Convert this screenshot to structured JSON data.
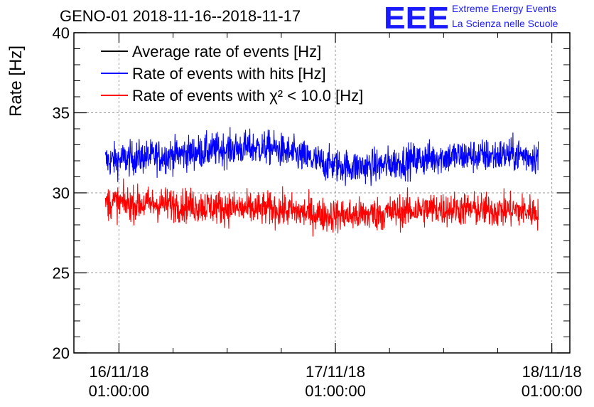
{
  "title": "GENO-01 2018-11-16--2018-11-17",
  "logo": {
    "mark": "EEE",
    "line1": "Extreme Energy Events",
    "line2": "La Scienza nelle Scuole",
    "color": "#1a1aff"
  },
  "chart_data": {
    "type": "line",
    "title": "GENO-01 2018-11-16--2018-11-17",
    "xlabel": "",
    "ylabel": "Rate [Hz]",
    "ylim": [
      20,
      40
    ],
    "xlim": [
      "2018-11-15 20:00",
      "2018-11-18 03:00"
    ],
    "yticks": [
      20,
      25,
      30,
      35,
      40
    ],
    "xticks": [
      {
        "line1": "16/11/18",
        "line2": "01:00:00"
      },
      {
        "line1": "17/11/18",
        "line2": "01:00:00"
      },
      {
        "line1": "18/11/18",
        "line2": "01:00:00"
      }
    ],
    "grid": true,
    "legend_position": "top-left",
    "data_start": "2018-11-15 23:30",
    "data_end": "2018-11-17 23:30",
    "series": [
      {
        "name": "Average rate of events [Hz]",
        "color": "#000000",
        "values": []
      },
      {
        "name": "Rate of events with hits [Hz]",
        "color": "#0000ff",
        "x": [
          "2018-11-16 00:00",
          "2018-11-16 03:00",
          "2018-11-16 06:00",
          "2018-11-16 09:00",
          "2018-11-16 12:00",
          "2018-11-16 15:00",
          "2018-11-16 18:00",
          "2018-11-16 21:00",
          "2018-11-17 00:00",
          "2018-11-17 03:00",
          "2018-11-17 06:00",
          "2018-11-17 09:00",
          "2018-11-17 12:00",
          "2018-11-17 15:00",
          "2018-11-17 18:00",
          "2018-11-17 21:00",
          "2018-11-17 23:30"
        ],
        "values": [
          32.0,
          32.2,
          32.3,
          32.5,
          32.7,
          32.8,
          32.8,
          32.3,
          31.8,
          31.6,
          31.7,
          32.0,
          32.2,
          32.3,
          32.3,
          32.4,
          32.2
        ],
        "range_min": 29.5,
        "range_max": 36.0
      },
      {
        "name": "Rate of events with χ² < 10.0 [Hz]",
        "color": "#ff0000",
        "x": [
          "2018-11-16 00:00",
          "2018-11-16 03:00",
          "2018-11-16 06:00",
          "2018-11-16 09:00",
          "2018-11-16 12:00",
          "2018-11-16 15:00",
          "2018-11-16 18:00",
          "2018-11-16 21:00",
          "2018-11-17 00:00",
          "2018-11-17 03:00",
          "2018-11-17 06:00",
          "2018-11-17 09:00",
          "2018-11-17 12:00",
          "2018-11-17 15:00",
          "2018-11-17 18:00",
          "2018-11-17 21:00",
          "2018-11-17 23:30"
        ],
        "values": [
          29.4,
          29.3,
          29.3,
          29.2,
          29.1,
          29.0,
          29.0,
          28.8,
          28.6,
          28.6,
          28.7,
          28.9,
          29.0,
          29.0,
          28.9,
          28.9,
          28.8
        ],
        "range_min": 26.3,
        "range_max": 32.2
      }
    ]
  }
}
